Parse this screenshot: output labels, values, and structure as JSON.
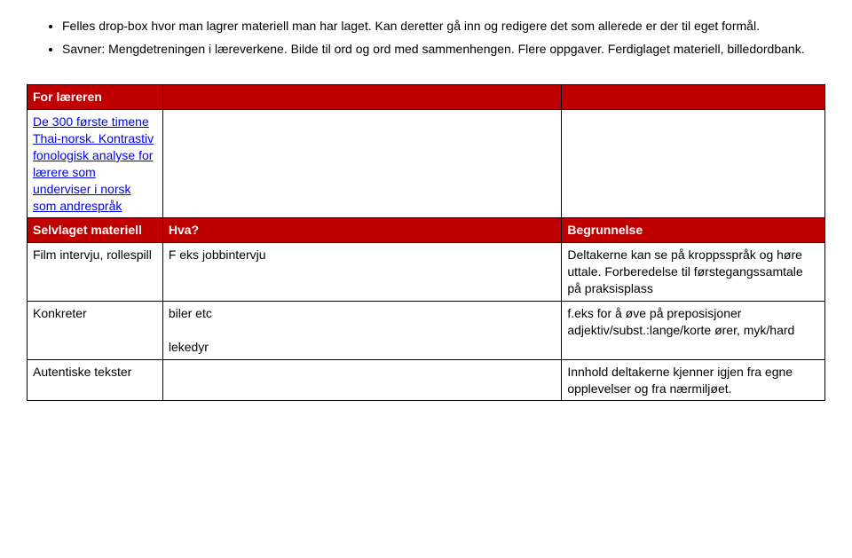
{
  "bullets": [
    "Felles drop-box hvor man lagrer materiell man har laget. Kan deretter gå inn og redigere det som allerede er der til eget formål.",
    "Savner: Mengdetreningen i læreverkene. Bilde til ord og ord med sammenhengen. Flere oppgaver. Ferdiglaget materiell, billedordbank."
  ],
  "table": {
    "row1_hdr": "For læreren",
    "row2_col1_link1": "De 300 første timene",
    "row2_col1_link2": "Thai-norsk. Kontrastiv fonologisk analyse for lærere som underviser i norsk som andrespråk",
    "row3_hdr1": "Selvlaget materiell",
    "row3_hdr2": "Hva?",
    "row3_hdr3": "Begrunnelse",
    "row4_c1": "Film intervju, rollespill",
    "row4_c2": "F eks jobbintervju",
    "row4_c3": "Deltakerne kan se på kroppsspråk og høre uttale. Forberedelse til førstegangssamtale på praksisplass",
    "row5_c1": "Konkreter",
    "row5_c2a": "biler etc",
    "row5_c2b": "lekedyr",
    "row5_c3": "f.eks for å øve på preposisjoner adjektiv/subst.:lange/korte ører, myk/hard",
    "row6_c1": "Autentiske tekster",
    "row6_c3": "Innhold deltakerne kjenner igjen fra egne opplevelser og fra nærmiljøet."
  }
}
